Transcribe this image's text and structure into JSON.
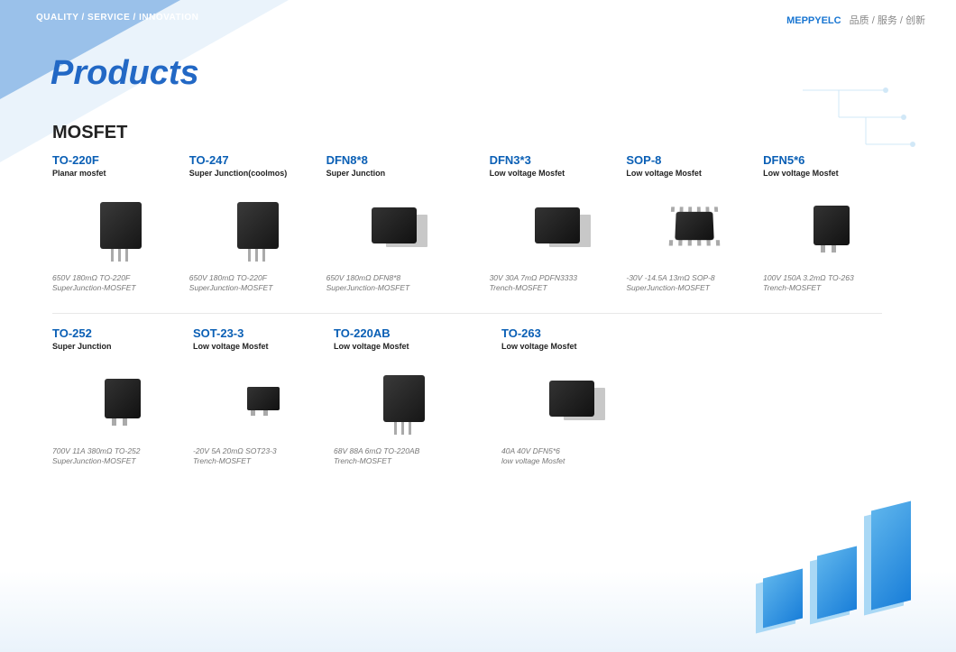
{
  "header": {
    "tagline": "QUALITY / SERVICE / INNOVATION"
  },
  "logo": {
    "brand": "MEPPYELC",
    "cn": "品质 / 服务 / 创新"
  },
  "page": {
    "title": "Products",
    "section": "MOSFET"
  },
  "row1": [
    {
      "title": "TO-220F",
      "sub": "Planar mosfet",
      "desc1": "650V 180mΩ TO-220F",
      "desc2": "SuperJunction-MOSFET",
      "chip": "chip"
    },
    {
      "title": "TO-247",
      "sub": "Super Junction(coolmos)",
      "desc1": "650V 180mΩ TO-220F",
      "desc2": "SuperJunction-MOSFET",
      "chip": "chip"
    },
    {
      "title": "DFN8*8",
      "sub": "Super Junction",
      "desc1": "650V 180mΩ DFN8*8",
      "desc2": "SuperJunction-MOSFET",
      "chip": "chip-flat"
    },
    {
      "title": "DFN3*3",
      "sub": "Low voltage Mosfet",
      "desc1": "30V 30A 7mΩ PDFN3333",
      "desc2": "Trench-MOSFET",
      "chip": "chip-flat"
    },
    {
      "title": "SOP-8",
      "sub": "Low voltage Mosfet",
      "desc1": "-30V -14.5A 13mΩ SOP-8",
      "desc2": "SuperJunction-MOSFET",
      "chip": "chip-sop"
    },
    {
      "title": "DFN5*6",
      "sub": "Low voltage Mosfet",
      "desc1": "100V 150A 3.2mΩ TO-263",
      "desc2": "Trench-MOSFET",
      "chip": "chip-dpak"
    }
  ],
  "row2": [
    {
      "title": "TO-252",
      "sub": "Super Junction",
      "desc1": "700V 11A 380mΩ TO-252",
      "desc2": "SuperJunction-MOSFET",
      "chip": "chip-dpak"
    },
    {
      "title": "SOT-23-3",
      "sub": "Low voltage Mosfet",
      "desc1": "-20V 5A 20mΩ SOT23-3",
      "desc2": "Trench-MOSFET",
      "chip": "chip-sot"
    },
    {
      "title": "TO-220AB",
      "sub": "Low voltage Mosfet",
      "desc1": "68V 88A 6mΩ TO-220AB",
      "desc2": "Trench-MOSFET",
      "chip": "chip"
    },
    {
      "title": "TO-263",
      "sub": "Low voltage Mosfet",
      "desc1": "40A 40V DFN5*6",
      "desc2": "low voltage Mosfet",
      "chip": "chip-flat"
    }
  ]
}
